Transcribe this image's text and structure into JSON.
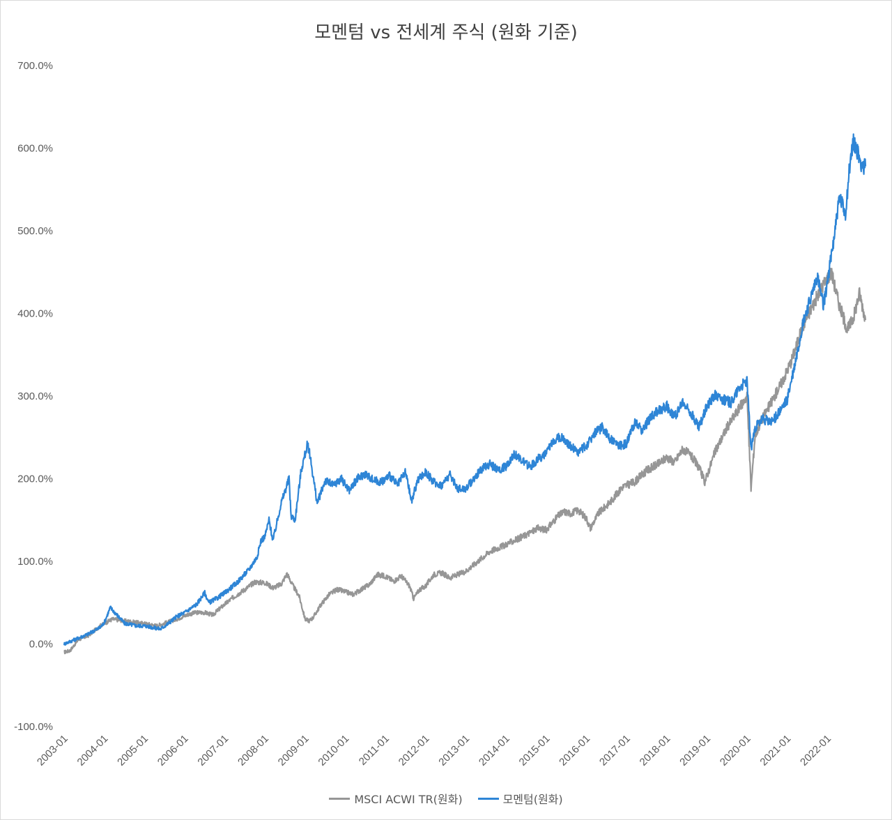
{
  "chart_data": {
    "type": "line",
    "title": "모멘텀 vs 전세계 주식 (원화 기준)",
    "xlabel": "",
    "ylabel": "",
    "ylim": [
      -100,
      700
    ],
    "y_ticks": [
      "700.0%",
      "600.0%",
      "500.0%",
      "400.0%",
      "300.0%",
      "200.0%",
      "100.0%",
      "0.0%",
      "-100.0%"
    ],
    "y_tick_values": [
      700,
      600,
      500,
      400,
      300,
      200,
      100,
      0,
      -100
    ],
    "x_ticks": [
      "2003-01",
      "2004-01",
      "2005-01",
      "2006-01",
      "2007-01",
      "2008-01",
      "2009-01",
      "2010-01",
      "2011-01",
      "2012-01",
      "2013-01",
      "2014-01",
      "2015-01",
      "2016-01",
      "2017-01",
      "2018-01",
      "2019-01",
      "2020-01",
      "2021-01",
      "2022-01"
    ],
    "x_tick_values": [
      2003,
      2004,
      2005,
      2006,
      2007,
      2008,
      2009,
      2010,
      2011,
      2012,
      2013,
      2014,
      2015,
      2016,
      2017,
      2018,
      2019,
      2020,
      2021,
      2022
    ],
    "xlim": [
      2003,
      2022.95
    ],
    "grid": false,
    "legend": "bottom",
    "series": [
      {
        "name": "MSCI ACWI TR(원화)",
        "color": "#969696",
        "x": [
          2003.0,
          2003.15,
          2003.35,
          2003.6,
          2003.9,
          2004.2,
          2004.5,
          2004.8,
          2005.1,
          2005.3,
          2005.5,
          2005.8,
          2006.1,
          2006.3,
          2006.5,
          2006.7,
          2006.9,
          2007.2,
          2007.5,
          2007.75,
          2008.0,
          2008.2,
          2008.4,
          2008.55,
          2008.7,
          2008.85,
          2009.0,
          2009.1,
          2009.2,
          2009.4,
          2009.6,
          2009.8,
          2010.0,
          2010.2,
          2010.4,
          2010.6,
          2010.8,
          2011.0,
          2011.2,
          2011.4,
          2011.6,
          2011.7,
          2011.85,
          2012.0,
          2012.2,
          2012.4,
          2012.6,
          2012.8,
          2013.0,
          2013.3,
          2013.6,
          2013.9,
          2014.2,
          2014.5,
          2014.8,
          2015.0,
          2015.3,
          2015.45,
          2015.6,
          2015.8,
          2016.0,
          2016.1,
          2016.3,
          2016.6,
          2016.9,
          2017.2,
          2017.5,
          2017.8,
          2018.0,
          2018.2,
          2018.4,
          2018.6,
          2018.8,
          2018.95,
          2019.2,
          2019.5,
          2019.8,
          2020.0,
          2020.1,
          2020.2,
          2020.35,
          2020.6,
          2020.9,
          2021.1,
          2021.4,
          2021.7,
          2021.9,
          2022.1,
          2022.3,
          2022.5,
          2022.65,
          2022.8,
          2022.95
        ],
        "values": [
          -10,
          -8,
          5,
          10,
          22,
          30,
          28,
          26,
          24,
          22,
          25,
          30,
          36,
          38,
          38,
          35,
          44,
          56,
          66,
          75,
          74,
          68,
          72,
          85,
          70,
          58,
          30,
          28,
          32,
          48,
          60,
          66,
          63,
          60,
          66,
          72,
          84,
          82,
          76,
          82,
          70,
          55,
          66,
          70,
          84,
          86,
          80,
          84,
          88,
          100,
          112,
          118,
          125,
          132,
          140,
          138,
          155,
          160,
          158,
          162,
          152,
          140,
          158,
          172,
          190,
          196,
          210,
          218,
          226,
          220,
          236,
          228,
          214,
          196,
          232,
          262,
          285,
          300,
          188,
          252,
          270,
          292,
          320,
          342,
          386,
          416,
          435,
          450,
          410,
          380,
          395,
          425,
          392
        ]
      },
      {
        "name": "모멘텀(원화)",
        "color": "#2e85d6",
        "x": [
          2003.0,
          2003.2,
          2003.4,
          2003.6,
          2003.9,
          2004.0,
          2004.15,
          2004.3,
          2004.5,
          2004.8,
          2005.0,
          2005.2,
          2005.4,
          2005.6,
          2005.8,
          2006.0,
          2006.3,
          2006.5,
          2006.6,
          2006.8,
          2007.0,
          2007.3,
          2007.6,
          2007.8,
          2007.9,
          2008.0,
          2008.1,
          2008.2,
          2008.4,
          2008.6,
          2008.65,
          2008.75,
          2008.9,
          2009.05,
          2009.1,
          2009.3,
          2009.5,
          2009.7,
          2009.9,
          2010.1,
          2010.3,
          2010.5,
          2010.7,
          2010.9,
          2011.1,
          2011.3,
          2011.5,
          2011.65,
          2011.8,
          2012.0,
          2012.2,
          2012.4,
          2012.6,
          2012.8,
          2013.0,
          2013.2,
          2013.4,
          2013.6,
          2013.8,
          2014.0,
          2014.2,
          2014.4,
          2014.6,
          2014.8,
          2015.0,
          2015.2,
          2015.4,
          2015.6,
          2015.8,
          2016.0,
          2016.2,
          2016.4,
          2016.6,
          2016.8,
          2017.0,
          2017.2,
          2017.4,
          2017.6,
          2017.8,
          2018.0,
          2018.2,
          2018.4,
          2018.6,
          2018.8,
          2019.0,
          2019.2,
          2019.4,
          2019.6,
          2019.8,
          2020.0,
          2020.1,
          2020.2,
          2020.4,
          2020.6,
          2020.8,
          2021.0,
          2021.2,
          2021.4,
          2021.6,
          2021.75,
          2021.9,
          2022.1,
          2022.3,
          2022.45,
          2022.55,
          2022.65,
          2022.75,
          2022.85,
          2022.95
        ],
        "values": [
          0,
          4,
          8,
          12,
          20,
          26,
          44,
          36,
          25,
          22,
          22,
          20,
          18,
          25,
          33,
          38,
          48,
          62,
          50,
          55,
          62,
          74,
          90,
          105,
          125,
          130,
          150,
          125,
          170,
          200,
          155,
          150,
          210,
          240,
          235,
          170,
          198,
          192,
          200,
          186,
          200,
          206,
          198,
          196,
          204,
          192,
          208,
          172,
          198,
          208,
          196,
          192,
          205,
          188,
          188,
          200,
          212,
          218,
          210,
          215,
          230,
          222,
          214,
          224,
          230,
          248,
          250,
          240,
          232,
          240,
          255,
          262,
          248,
          240,
          242,
          268,
          258,
          275,
          282,
          288,
          275,
          292,
          280,
          262,
          288,
          302,
          296,
          292,
          310,
          318,
          235,
          262,
          272,
          268,
          280,
          295,
          340,
          390,
          420,
          445,
          408,
          470,
          540,
          520,
          575,
          610,
          595,
          580,
          578
        ]
      }
    ]
  },
  "legend": {
    "items": [
      {
        "label": "MSCI ACWI TR(원화)",
        "color": "#969696"
      },
      {
        "label": "모멘텀(원화)",
        "color": "#2e85d6"
      }
    ]
  }
}
